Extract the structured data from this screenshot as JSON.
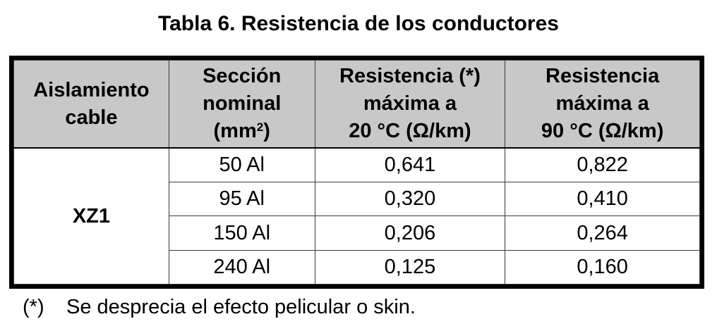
{
  "title": "Tabla 6. Resistencia de los conductores",
  "headers": {
    "col1": {
      "line1": "Aislamiento",
      "line2": "cable"
    },
    "col2": {
      "line1": "Sección",
      "line2": "nominal",
      "line3_pre": "(mm",
      "line3_sup": "2",
      "line3_post": ")"
    },
    "col3": {
      "line1": "Resistencia (*)",
      "line2": "máxima a",
      "line3": "20 °C (Ω/km)"
    },
    "col4": {
      "line1": "Resistencia",
      "line2": "máxima a",
      "line3": "90 °C (Ω/km)"
    }
  },
  "group": "XZ1",
  "rows": [
    {
      "section": "50 Al",
      "r20": "0,641",
      "r90": "0,822"
    },
    {
      "section": "95 Al",
      "r20": "0,320",
      "r90": "0,410"
    },
    {
      "section": "150 Al",
      "r20": "0,206",
      "r90": "0,264"
    },
    {
      "section": "240 Al",
      "r20": "0,125",
      "r90": "0,160"
    }
  ],
  "note": {
    "mark": "(*)",
    "text": "Se desprecia el efecto pelicular o skin."
  },
  "colors": {
    "header_bg": "#c8c8c8",
    "border": "#000000"
  }
}
